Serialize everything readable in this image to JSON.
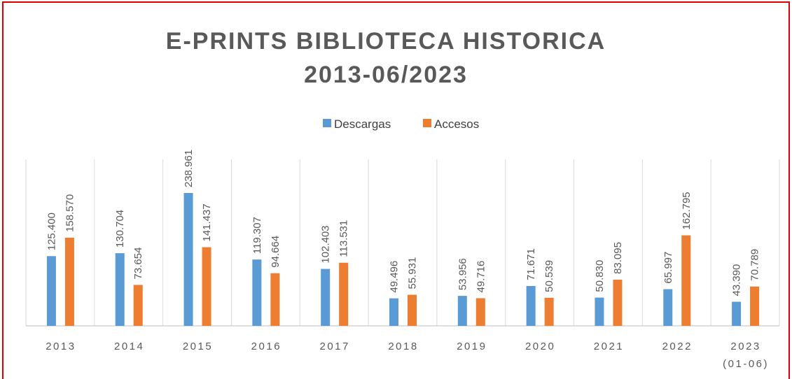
{
  "chart_data": {
    "type": "bar",
    "title": "E-PRINTS BIBLIOTECA HISTORICA 2013-06/2023",
    "categories": [
      "2013",
      "2014",
      "2015",
      "2016",
      "2017",
      "2018",
      "2019",
      "2020",
      "2021",
      "2022",
      "2023 (01-06)"
    ],
    "series": [
      {
        "name": "Descargas",
        "color": "#5b9bd5",
        "values": [
          125400,
          130704,
          238961,
          119307,
          102403,
          49496,
          53956,
          71671,
          50830,
          65997,
          43390
        ],
        "value_labels": [
          "125.400",
          "130.704",
          "238.961",
          "119.307",
          "102.403",
          "49.496",
          "53.956",
          "71.671",
          "50.830",
          "65.997",
          "43.390"
        ]
      },
      {
        "name": "Accesos",
        "color": "#ed7d31",
        "values": [
          158570,
          73654,
          141437,
          94664,
          113531,
          55931,
          49716,
          50539,
          83095,
          162795,
          70789
        ],
        "value_labels": [
          "158.570",
          "73.654",
          "141.437",
          "94.664",
          "113.531",
          "55.931",
          "49.716",
          "50.539",
          "83.095",
          "162.795",
          "70.789"
        ]
      }
    ],
    "legend": "top"
  }
}
